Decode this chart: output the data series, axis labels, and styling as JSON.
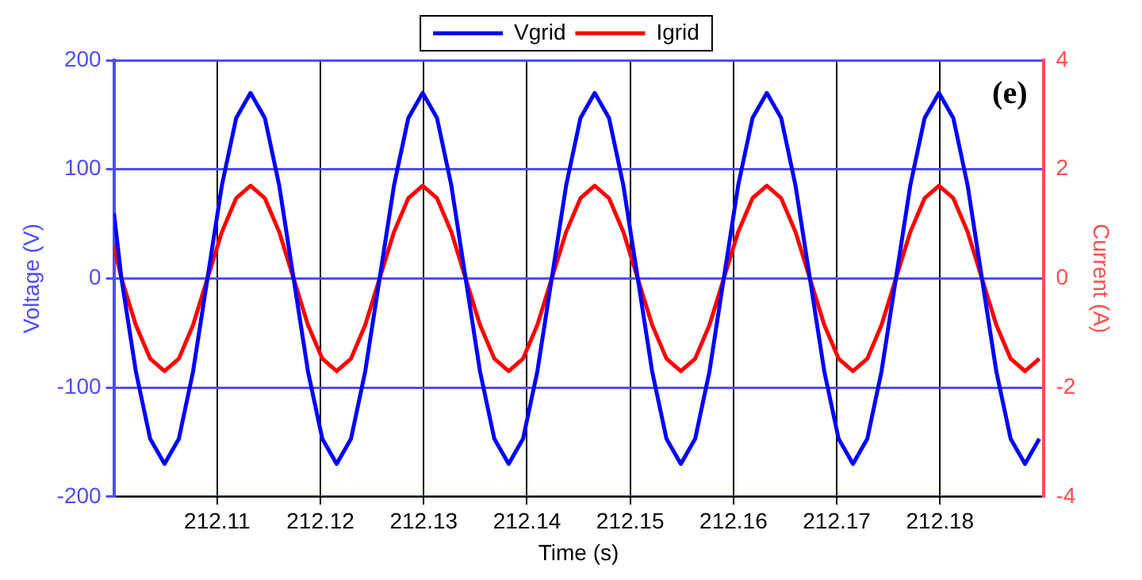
{
  "chart_data": {
    "type": "line",
    "xlabel": "Time (s)",
    "ylabel": "Voltage (V)",
    "y2label": "Current (A)",
    "annotations": [
      "(e)"
    ],
    "x": [
      212.1,
      212.10073,
      212.10212,
      212.10351,
      212.1049,
      212.10629,
      212.10767,
      212.10906,
      212.11045,
      212.11184,
      212.11323,
      212.11462,
      212.11601,
      212.1174,
      212.11879,
      212.12018,
      212.12157,
      212.12296,
      212.12434,
      212.12573,
      212.12712,
      212.12851,
      212.1299,
      212.13129,
      212.13268,
      212.13406,
      212.13545,
      212.13684,
      212.13823,
      212.13962,
      212.14101,
      212.1424,
      212.14379,
      212.14518,
      212.14656,
      212.14795,
      212.14934,
      212.15073,
      212.15212,
      212.15351,
      212.1549,
      212.15629,
      212.15768,
      212.15906,
      212.16045,
      212.16184,
      212.16323,
      212.16462,
      212.16601,
      212.1674,
      212.16879,
      212.17018,
      212.17157,
      212.17296,
      212.17434,
      212.17573,
      212.17712,
      212.17851,
      212.1799,
      212.18129,
      212.18268,
      212.18406,
      212.18545,
      212.18684,
      212.18823,
      212.18962
    ],
    "series": [
      {
        "name": "Vgrid",
        "color": "#0000ff",
        "values": [
          60,
          0,
          -85,
          -147,
          -170,
          -147,
          -85,
          0,
          85,
          147,
          170,
          147,
          85,
          0,
          -85,
          -147,
          -170,
          -147,
          -85,
          0,
          85,
          147,
          170,
          147,
          85,
          0,
          -85,
          -147,
          -170,
          -147,
          -85,
          0,
          85,
          147,
          170,
          147,
          85,
          0,
          -85,
          -147,
          -170,
          -147,
          -85,
          0,
          85,
          147,
          170,
          147,
          85,
          0,
          -85,
          -147,
          -170,
          -147,
          -85,
          0,
          85,
          147,
          170,
          147,
          85,
          0,
          -85,
          -147,
          -170,
          -147
        ]
      },
      {
        "name": "Igrid",
        "color": "#ff0000",
        "axis": "y2",
        "values": [
          0.6,
          0,
          -0.85,
          -1.47,
          -1.7,
          -1.47,
          -0.85,
          0,
          0.85,
          1.47,
          1.7,
          1.47,
          0.85,
          0,
          -0.85,
          -1.47,
          -1.7,
          -1.47,
          -0.85,
          0,
          0.85,
          1.47,
          1.7,
          1.47,
          0.85,
          0,
          -0.85,
          -1.47,
          -1.7,
          -1.47,
          -0.85,
          0,
          0.85,
          1.47,
          1.7,
          1.47,
          0.85,
          0,
          -0.85,
          -1.47,
          -1.7,
          -1.47,
          -0.85,
          0,
          0.85,
          1.47,
          1.7,
          1.47,
          0.85,
          0,
          -0.85,
          -1.47,
          -1.7,
          -1.47,
          -0.85,
          0,
          0.85,
          1.47,
          1.7,
          1.47,
          0.85,
          0,
          -0.85,
          -1.47,
          -1.7,
          -1.47
        ]
      }
    ],
    "xlim": [
      212.1,
      212.19
    ],
    "xticks": [
      212.11,
      212.12,
      212.13,
      212.14,
      212.15,
      212.16,
      212.17,
      212.18
    ],
    "ylim": [
      -200,
      200
    ],
    "yticks": [
      -200,
      -100,
      0,
      100,
      200
    ],
    "y2lim": [
      -4,
      4
    ],
    "y2ticks": [
      -4,
      -2,
      0,
      2,
      4
    ],
    "grid": true,
    "legend": "top",
    "marker": "none",
    "line_style": "solid"
  }
}
